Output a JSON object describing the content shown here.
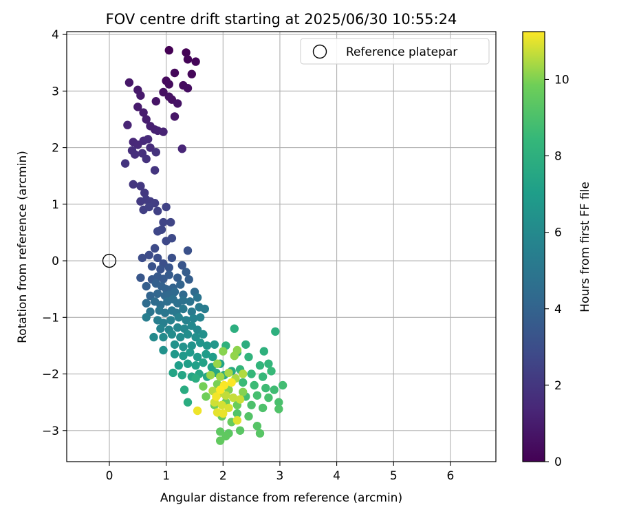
{
  "chart_data": {
    "type": "scatter",
    "title": "FOV centre drift starting at 2025/06/30 10:55:24",
    "xlabel": "Angular distance from reference (arcmin)",
    "ylabel": "Rotation from reference (arcmin)",
    "xlim": [
      -0.75,
      6.8
    ],
    "ylim": [
      -3.55,
      4.05
    ],
    "x_ticks": [
      0,
      1,
      2,
      3,
      4,
      5,
      6
    ],
    "y_ticks": [
      -3,
      -2,
      -1,
      0,
      1,
      2,
      3,
      4
    ],
    "grid": true,
    "legend": {
      "placement": "top-right",
      "entries": [
        {
          "label": "Reference platepar",
          "marker": "open-circle"
        }
      ]
    },
    "reference_point": {
      "x": 0,
      "y": 0
    },
    "colorbar": {
      "label": "Hours from first FF file",
      "colormap": "viridis",
      "range": [
        0,
        11.25
      ],
      "ticks": [
        0,
        2,
        4,
        6,
        8,
        10
      ]
    },
    "series": [
      {
        "columns": [
          "x",
          "y",
          "hours"
        ],
        "points": [
          [
            1.05,
            3.72,
            0.0
          ],
          [
            1.35,
            3.68,
            0.05
          ],
          [
            1.38,
            3.56,
            0.1
          ],
          [
            1.52,
            3.52,
            0.15
          ],
          [
            1.45,
            3.3,
            0.2
          ],
          [
            1.15,
            3.32,
            0.25
          ],
          [
            1.0,
            3.18,
            0.3
          ],
          [
            1.05,
            3.12,
            0.35
          ],
          [
            1.3,
            3.1,
            0.4
          ],
          [
            1.38,
            3.05,
            0.45
          ],
          [
            0.95,
            2.98,
            0.5
          ],
          [
            1.1,
            2.85,
            0.55
          ],
          [
            1.05,
            2.9,
            0.6
          ],
          [
            1.2,
            2.78,
            0.65
          ],
          [
            0.82,
            2.82,
            0.7
          ],
          [
            1.15,
            2.55,
            0.75
          ],
          [
            0.35,
            3.15,
            0.8
          ],
          [
            0.5,
            3.02,
            0.85
          ],
          [
            0.55,
            2.92,
            0.9
          ],
          [
            0.5,
            2.72,
            0.95
          ],
          [
            0.6,
            2.62,
            1.0
          ],
          [
            0.65,
            2.5,
            1.05
          ],
          [
            0.72,
            2.38,
            1.1
          ],
          [
            0.8,
            2.32,
            1.15
          ],
          [
            0.85,
            2.3,
            1.2
          ],
          [
            0.95,
            2.28,
            1.25
          ],
          [
            0.32,
            2.4,
            1.3
          ],
          [
            1.28,
            1.98,
            1.35
          ],
          [
            0.42,
            2.1,
            1.4
          ],
          [
            0.5,
            2.05,
            1.45
          ],
          [
            0.6,
            2.12,
            1.5
          ],
          [
            0.68,
            2.15,
            1.55
          ],
          [
            0.72,
            2.0,
            1.6
          ],
          [
            0.4,
            1.95,
            1.65
          ],
          [
            0.45,
            1.88,
            1.7
          ],
          [
            0.58,
            1.9,
            1.75
          ],
          [
            0.65,
            1.8,
            1.8
          ],
          [
            0.82,
            1.92,
            1.85
          ],
          [
            0.28,
            1.72,
            1.9
          ],
          [
            0.8,
            1.6,
            1.95
          ],
          [
            0.42,
            1.35,
            2.0
          ],
          [
            0.55,
            1.32,
            2.05
          ],
          [
            0.62,
            1.2,
            2.1
          ],
          [
            0.55,
            1.05,
            2.15
          ],
          [
            0.65,
            1.08,
            2.2
          ],
          [
            0.72,
            1.05,
            2.25
          ],
          [
            0.8,
            1.02,
            2.3
          ],
          [
            0.6,
            0.9,
            2.35
          ],
          [
            0.7,
            0.95,
            2.4
          ],
          [
            0.85,
            0.88,
            2.45
          ],
          [
            1.0,
            0.95,
            2.5
          ],
          [
            0.95,
            0.68,
            2.55
          ],
          [
            1.08,
            0.68,
            2.6
          ],
          [
            0.92,
            0.55,
            2.65
          ],
          [
            0.85,
            0.52,
            2.7
          ],
          [
            1.0,
            0.35,
            2.75
          ],
          [
            1.1,
            0.4,
            2.8
          ],
          [
            0.8,
            0.22,
            2.85
          ],
          [
            0.7,
            0.1,
            2.9
          ],
          [
            0.58,
            0.05,
            2.95
          ],
          [
            0.85,
            0.05,
            3.0
          ],
          [
            0.95,
            -0.05,
            3.05
          ],
          [
            1.1,
            0.05,
            3.1
          ],
          [
            1.38,
            0.18,
            3.15
          ],
          [
            0.75,
            -0.1,
            3.2
          ],
          [
            0.9,
            -0.15,
            3.25
          ],
          [
            1.05,
            -0.12,
            3.3
          ],
          [
            1.28,
            -0.08,
            3.35
          ],
          [
            0.55,
            -0.3,
            3.4
          ],
          [
            0.75,
            -0.33,
            3.45
          ],
          [
            0.85,
            -0.28,
            3.5
          ],
          [
            0.95,
            -0.32,
            3.55
          ],
          [
            1.05,
            -0.25,
            3.6
          ],
          [
            1.2,
            -0.3,
            3.65
          ],
          [
            1.35,
            -0.2,
            3.7
          ],
          [
            1.4,
            -0.33,
            3.75
          ],
          [
            0.65,
            -0.45,
            3.8
          ],
          [
            0.82,
            -0.4,
            3.85
          ],
          [
            0.92,
            -0.45,
            3.9
          ],
          [
            1.0,
            -0.5,
            3.95
          ],
          [
            1.12,
            -0.48,
            4.0
          ],
          [
            1.25,
            -0.42,
            4.05
          ],
          [
            0.72,
            -0.62,
            4.1
          ],
          [
            0.85,
            -0.58,
            4.15
          ],
          [
            0.98,
            -0.62,
            4.2
          ],
          [
            1.05,
            -0.6,
            4.25
          ],
          [
            1.15,
            -0.55,
            4.3
          ],
          [
            1.3,
            -0.6,
            4.35
          ],
          [
            1.5,
            -0.55,
            4.4
          ],
          [
            0.65,
            -0.75,
            4.45
          ],
          [
            0.8,
            -0.72,
            4.5
          ],
          [
            0.9,
            -0.78,
            4.55
          ],
          [
            1.02,
            -0.72,
            4.6
          ],
          [
            1.12,
            -0.68,
            4.65
          ],
          [
            1.2,
            -0.75,
            4.7
          ],
          [
            1.3,
            -0.7,
            4.75
          ],
          [
            1.42,
            -0.72,
            4.8
          ],
          [
            1.55,
            -0.65,
            4.85
          ],
          [
            0.72,
            -0.9,
            4.9
          ],
          [
            0.88,
            -0.88,
            4.95
          ],
          [
            0.98,
            -0.92,
            5.0
          ],
          [
            1.1,
            -0.88,
            5.05
          ],
          [
            1.18,
            -0.92,
            5.1
          ],
          [
            1.3,
            -0.85,
            5.15
          ],
          [
            1.45,
            -0.9,
            5.2
          ],
          [
            1.58,
            -0.82,
            5.25
          ],
          [
            1.68,
            -0.85,
            5.3
          ],
          [
            0.65,
            -1.0,
            5.35
          ],
          [
            0.85,
            -1.05,
            5.4
          ],
          [
            0.95,
            -1.1,
            5.45
          ],
          [
            1.08,
            -1.05,
            5.5
          ],
          [
            1.22,
            -1.0,
            5.55
          ],
          [
            1.35,
            -1.05,
            5.6
          ],
          [
            1.48,
            -1.02,
            5.65
          ],
          [
            1.6,
            -1.0,
            5.7
          ],
          [
            0.9,
            -1.2,
            5.75
          ],
          [
            1.05,
            -1.22,
            5.8
          ],
          [
            1.2,
            -1.18,
            5.85
          ],
          [
            1.32,
            -1.2,
            5.9
          ],
          [
            1.45,
            -1.15,
            5.95
          ],
          [
            1.55,
            -1.22,
            6.0
          ],
          [
            0.78,
            -1.35,
            6.05
          ],
          [
            0.95,
            -1.35,
            6.1
          ],
          [
            1.1,
            -1.3,
            6.15
          ],
          [
            1.25,
            -1.35,
            6.2
          ],
          [
            1.38,
            -1.3,
            6.25
          ],
          [
            1.52,
            -1.35,
            6.3
          ],
          [
            1.65,
            -1.3,
            6.35
          ],
          [
            0.95,
            -1.58,
            6.4
          ],
          [
            1.15,
            -1.48,
            6.45
          ],
          [
            1.3,
            -1.52,
            6.5
          ],
          [
            1.45,
            -1.5,
            6.55
          ],
          [
            1.6,
            -1.45,
            6.6
          ],
          [
            1.72,
            -1.5,
            6.65
          ],
          [
            1.85,
            -1.48,
            6.7
          ],
          [
            1.15,
            -1.65,
            6.75
          ],
          [
            1.3,
            -1.68,
            6.8
          ],
          [
            1.42,
            -1.62,
            6.85
          ],
          [
            1.55,
            -1.7,
            6.9
          ],
          [
            1.7,
            -1.65,
            6.95
          ],
          [
            1.82,
            -1.7,
            7.0
          ],
          [
            1.22,
            -1.85,
            7.05
          ],
          [
            1.38,
            -1.82,
            7.1
          ],
          [
            1.52,
            -1.85,
            7.15
          ],
          [
            1.65,
            -1.8,
            7.2
          ],
          [
            1.8,
            -1.88,
            7.25
          ],
          [
            1.95,
            -1.82,
            7.3
          ],
          [
            1.12,
            -1.98,
            7.35
          ],
          [
            1.28,
            -2.02,
            7.4
          ],
          [
            1.45,
            -2.05,
            7.45
          ],
          [
            1.58,
            -2.0,
            7.5
          ],
          [
            1.72,
            -2.05,
            7.55
          ],
          [
            1.88,
            -1.98,
            7.6
          ],
          [
            2.02,
            -2.02,
            7.65
          ],
          [
            2.15,
            -1.95,
            7.7
          ],
          [
            1.32,
            -2.28,
            7.75
          ],
          [
            1.38,
            -2.5,
            7.8
          ],
          [
            1.52,
            -2.08,
            7.85
          ],
          [
            2.4,
            -1.48,
            7.9
          ],
          [
            2.2,
            -1.2,
            7.95
          ],
          [
            2.92,
            -1.25,
            8.0
          ],
          [
            2.72,
            -1.6,
            8.05
          ],
          [
            2.05,
            -1.5,
            8.1
          ],
          [
            2.25,
            -1.62,
            8.15
          ],
          [
            2.45,
            -1.7,
            8.2
          ],
          [
            2.65,
            -1.85,
            8.25
          ],
          [
            2.8,
            -1.82,
            8.3
          ],
          [
            2.3,
            -1.92,
            8.35
          ],
          [
            2.5,
            -2.0,
            8.4
          ],
          [
            2.7,
            -2.05,
            8.45
          ],
          [
            2.85,
            -1.95,
            8.5
          ],
          [
            2.35,
            -2.15,
            8.55
          ],
          [
            2.55,
            -2.2,
            8.6
          ],
          [
            2.75,
            -2.25,
            8.65
          ],
          [
            2.9,
            -2.28,
            8.7
          ],
          [
            3.05,
            -2.2,
            8.75
          ],
          [
            2.4,
            -2.4,
            8.8
          ],
          [
            2.6,
            -2.38,
            8.85
          ],
          [
            2.8,
            -2.42,
            8.9
          ],
          [
            2.98,
            -2.5,
            8.95
          ],
          [
            2.5,
            -2.55,
            9.0
          ],
          [
            2.7,
            -2.6,
            9.05
          ],
          [
            2.98,
            -2.62,
            9.1
          ],
          [
            2.25,
            -2.7,
            9.15
          ],
          [
            2.45,
            -2.75,
            9.2
          ],
          [
            2.6,
            -2.92,
            9.25
          ],
          [
            2.65,
            -3.05,
            9.3
          ],
          [
            2.3,
            -3.0,
            9.35
          ],
          [
            2.1,
            -3.05,
            9.4
          ],
          [
            1.95,
            -3.02,
            9.45
          ],
          [
            2.05,
            -3.1,
            9.5
          ],
          [
            1.95,
            -3.18,
            9.55
          ],
          [
            1.98,
            -2.75,
            9.6
          ],
          [
            2.15,
            -2.85,
            9.65
          ],
          [
            2.25,
            -2.55,
            9.7
          ],
          [
            2.05,
            -2.5,
            9.75
          ],
          [
            1.85,
            -2.55,
            9.8
          ],
          [
            1.7,
            -2.4,
            9.85
          ],
          [
            1.65,
            -2.22,
            9.9
          ],
          [
            1.9,
            -2.18,
            9.95
          ],
          [
            2.1,
            -2.28,
            10.0
          ],
          [
            2.35,
            -2.32,
            10.05
          ],
          [
            2.0,
            -1.6,
            10.1
          ],
          [
            2.25,
            -1.58,
            10.15
          ],
          [
            2.2,
            -1.68,
            10.2
          ],
          [
            1.9,
            -1.82,
            10.25
          ],
          [
            1.78,
            -2.02,
            10.3
          ],
          [
            1.95,
            -2.05,
            10.35
          ],
          [
            2.1,
            -1.98,
            10.4
          ],
          [
            2.22,
            -2.08,
            10.45
          ],
          [
            2.35,
            -2.0,
            10.5
          ],
          [
            1.82,
            -2.3,
            10.55
          ],
          [
            1.92,
            -2.35,
            10.6
          ],
          [
            2.05,
            -2.38,
            10.65
          ],
          [
            2.18,
            -2.42,
            10.7
          ],
          [
            2.3,
            -2.45,
            10.75
          ],
          [
            1.85,
            -2.5,
            10.8
          ],
          [
            1.98,
            -2.55,
            10.85
          ],
          [
            2.1,
            -2.6,
            10.9
          ],
          [
            2.25,
            -2.82,
            10.95
          ],
          [
            1.9,
            -2.68,
            11.0
          ],
          [
            2.0,
            -2.7,
            11.05
          ],
          [
            1.55,
            -2.65,
            11.1
          ],
          [
            1.88,
            -2.4,
            11.15
          ],
          [
            2.02,
            -2.2,
            11.2
          ],
          [
            2.15,
            -2.15,
            11.22
          ],
          [
            1.95,
            -2.28,
            11.25
          ]
        ]
      }
    ]
  }
}
